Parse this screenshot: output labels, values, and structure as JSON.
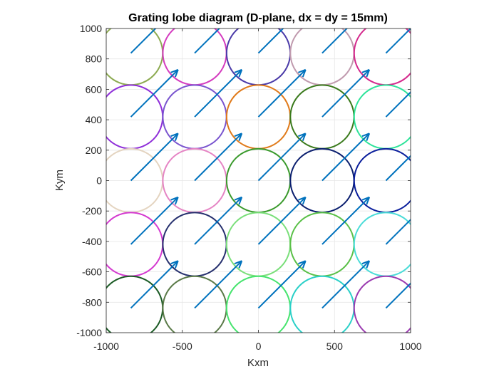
{
  "chart_data": {
    "type": "scatter",
    "title": "Grating lobe diagram (D-plane, dx = dy = 15mm)",
    "xlabel": "Kxm",
    "ylabel": "Kym",
    "xlim": [
      -1000,
      1000
    ],
    "ylim": [
      -1000,
      1000
    ],
    "xticks": [
      -1000,
      -500,
      0,
      500,
      1000
    ],
    "yticks": [
      -1000,
      -800,
      -600,
      -400,
      -200,
      0,
      200,
      400,
      600,
      800,
      1000
    ],
    "xtick_labels": [
      "-1000",
      "-500",
      "0",
      "500",
      "1000"
    ],
    "ytick_labels": [
      "-1000",
      "-800",
      "-600",
      "-400",
      "-200",
      "0",
      "200",
      "400",
      "600",
      "800",
      "1000"
    ],
    "grid": true,
    "circle_radius": 209,
    "lattice_spacing": 419,
    "circle_centers_x": [
      -838,
      -419,
      0,
      419,
      838
    ],
    "circle_centers_y": [
      838,
      419,
      0,
      -419,
      -838
    ],
    "circle_colors": [
      [
        "#8caa50",
        "#d43bbf",
        "#4a3aa8",
        "#c09aae",
        "#d4288c"
      ],
      [
        "#8f2fd9",
        "#7a55cf",
        "#e07a1a",
        "#3a7a1c",
        "#2ee39a"
      ],
      [
        "#e4d4c0",
        "#e584c4",
        "#3a9a2c",
        "#0a1e6e",
        "#0a1e9c"
      ],
      [
        "#d43ad0",
        "#26306e",
        "#7adf7a",
        "#5ac048",
        "#4adcd8"
      ],
      [
        "#1a5a24",
        "#5a7a48",
        "#46e46e",
        "#2ad0c8",
        "#9a3ab0"
      ]
    ],
    "arrow": {
      "dx": 310,
      "dy": 310,
      "color": "#0072bd"
    }
  }
}
